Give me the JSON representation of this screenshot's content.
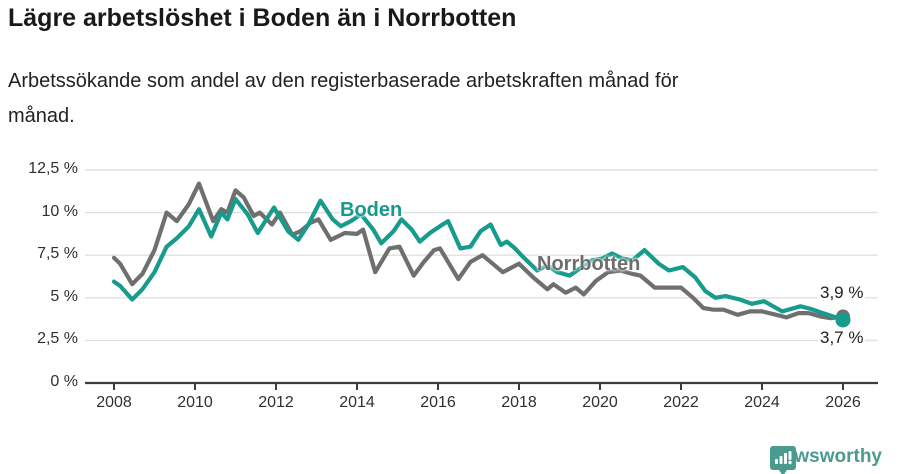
{
  "header": {
    "title": "Lägre arbetslöshet i Boden än i Norrbotten",
    "subtitle_line1": "Arbetssökande som andel av den registerbaserade arbetskraften månad för",
    "subtitle_line2": "månad."
  },
  "footer": {
    "brand": "Newsworthy",
    "brand_color": "#4a9b8e",
    "logo_icon": "speech-bubble-bar-chart-icon"
  },
  "colors": {
    "boden": "#169b8d",
    "norrbotten": "#6f6f6f",
    "gridline": "#e0e0e0",
    "axis": "#3d3d3d",
    "text": "#303030"
  },
  "chart_data": {
    "type": "line",
    "title": "Lägre arbetslöshet i Boden än i Norrbotten",
    "subtitle": "Arbetssökande som andel av den registerbaserade arbetskraften månad för månad.",
    "xlabel": "",
    "ylabel": "",
    "grid": true,
    "legend_position": "inline-labels",
    "x_axis": {
      "tick_years": [
        2008,
        2010,
        2012,
        2014,
        2016,
        2018,
        2020,
        2022,
        2024,
        2026
      ],
      "range": [
        2008,
        2026.8
      ]
    },
    "y_axis": {
      "tick_values": [
        0,
        2.5,
        5,
        7.5,
        10,
        12.5
      ],
      "tick_labels": [
        "0 %",
        "2,5 %",
        "5 %",
        "7,5 %",
        "10 %",
        "12,5 %"
      ],
      "range": [
        0,
        12.5
      ]
    },
    "series": [
      {
        "name": "Boden",
        "color": "#169b8d",
        "end_label": "3,7 %",
        "end_value": 3.7,
        "points": [
          [
            2008.0,
            5.95
          ],
          [
            2008.15,
            5.7
          ],
          [
            2008.45,
            4.9
          ],
          [
            2008.7,
            5.5
          ],
          [
            2009.0,
            6.5
          ],
          [
            2009.3,
            8.0
          ],
          [
            2009.55,
            8.5
          ],
          [
            2009.85,
            9.2
          ],
          [
            2010.1,
            10.2
          ],
          [
            2010.4,
            8.6
          ],
          [
            2010.65,
            10.0
          ],
          [
            2010.8,
            9.6
          ],
          [
            2011.0,
            10.8
          ],
          [
            2011.3,
            9.9
          ],
          [
            2011.55,
            8.8
          ],
          [
            2011.95,
            10.3
          ],
          [
            2012.3,
            8.9
          ],
          [
            2012.55,
            8.4
          ],
          [
            2012.8,
            9.3
          ],
          [
            2013.1,
            10.7
          ],
          [
            2013.4,
            9.6
          ],
          [
            2013.6,
            9.2
          ],
          [
            2013.85,
            9.5
          ],
          [
            2014.1,
            9.9
          ],
          [
            2014.4,
            9.0
          ],
          [
            2014.6,
            8.2
          ],
          [
            2014.9,
            8.9
          ],
          [
            2015.1,
            9.6
          ],
          [
            2015.35,
            9.0
          ],
          [
            2015.55,
            8.3
          ],
          [
            2015.8,
            8.8
          ],
          [
            2016.05,
            9.2
          ],
          [
            2016.25,
            9.5
          ],
          [
            2016.55,
            7.9
          ],
          [
            2016.8,
            8.0
          ],
          [
            2017.05,
            8.9
          ],
          [
            2017.3,
            9.3
          ],
          [
            2017.55,
            8.1
          ],
          [
            2017.7,
            8.3
          ],
          [
            2017.9,
            7.9
          ],
          [
            2018.1,
            7.4
          ],
          [
            2018.45,
            6.6
          ],
          [
            2018.7,
            6.9
          ],
          [
            2018.95,
            6.5
          ],
          [
            2019.25,
            6.3
          ],
          [
            2019.55,
            6.8
          ],
          [
            2019.8,
            7.2
          ],
          [
            2020.05,
            7.3
          ],
          [
            2020.3,
            7.6
          ],
          [
            2020.55,
            7.3
          ],
          [
            2020.8,
            7.2
          ],
          [
            2021.1,
            7.8
          ],
          [
            2021.45,
            7.0
          ],
          [
            2021.7,
            6.6
          ],
          [
            2022.05,
            6.8
          ],
          [
            2022.35,
            6.2
          ],
          [
            2022.6,
            5.4
          ],
          [
            2022.85,
            5.0
          ],
          [
            2023.1,
            5.1
          ],
          [
            2023.45,
            4.9
          ],
          [
            2023.75,
            4.65
          ],
          [
            2024.05,
            4.8
          ],
          [
            2024.5,
            4.2
          ],
          [
            2024.95,
            4.5
          ],
          [
            2025.2,
            4.35
          ],
          [
            2025.5,
            4.1
          ],
          [
            2025.7,
            3.95
          ],
          [
            2026.0,
            3.7
          ]
        ]
      },
      {
        "name": "Norrbotten",
        "color": "#6f6f6f",
        "end_label": "3,9 %",
        "end_value": 3.9,
        "points": [
          [
            2008.0,
            7.35
          ],
          [
            2008.15,
            7.0
          ],
          [
            2008.45,
            5.8
          ],
          [
            2008.7,
            6.4
          ],
          [
            2009.0,
            7.8
          ],
          [
            2009.3,
            10.0
          ],
          [
            2009.55,
            9.5
          ],
          [
            2009.85,
            10.5
          ],
          [
            2010.1,
            11.7
          ],
          [
            2010.45,
            9.5
          ],
          [
            2010.65,
            10.2
          ],
          [
            2010.8,
            10.0
          ],
          [
            2011.0,
            11.3
          ],
          [
            2011.2,
            10.9
          ],
          [
            2011.45,
            9.8
          ],
          [
            2011.6,
            10.0
          ],
          [
            2011.9,
            9.3
          ],
          [
            2012.1,
            10.0
          ],
          [
            2012.4,
            8.7
          ],
          [
            2012.6,
            8.9
          ],
          [
            2012.85,
            9.4
          ],
          [
            2013.05,
            9.6
          ],
          [
            2013.35,
            8.4
          ],
          [
            2013.7,
            8.8
          ],
          [
            2014.0,
            8.75
          ],
          [
            2014.15,
            9.0
          ],
          [
            2014.45,
            6.5
          ],
          [
            2014.8,
            7.9
          ],
          [
            2015.05,
            8.0
          ],
          [
            2015.4,
            6.3
          ],
          [
            2015.65,
            7.1
          ],
          [
            2015.9,
            7.8
          ],
          [
            2016.05,
            7.9
          ],
          [
            2016.5,
            6.1
          ],
          [
            2016.8,
            7.1
          ],
          [
            2017.1,
            7.5
          ],
          [
            2017.6,
            6.5
          ],
          [
            2018.0,
            7.0
          ],
          [
            2018.35,
            6.2
          ],
          [
            2018.7,
            5.5
          ],
          [
            2018.85,
            5.8
          ],
          [
            2019.15,
            5.3
          ],
          [
            2019.4,
            5.6
          ],
          [
            2019.6,
            5.2
          ],
          [
            2019.9,
            6.0
          ],
          [
            2020.2,
            6.5
          ],
          [
            2020.5,
            6.6
          ],
          [
            2020.8,
            6.4
          ],
          [
            2021.0,
            6.3
          ],
          [
            2021.35,
            5.6
          ],
          [
            2021.7,
            5.6
          ],
          [
            2022.0,
            5.6
          ],
          [
            2022.3,
            5.0
          ],
          [
            2022.55,
            4.4
          ],
          [
            2022.8,
            4.3
          ],
          [
            2023.05,
            4.3
          ],
          [
            2023.4,
            4.0
          ],
          [
            2023.7,
            4.2
          ],
          [
            2024.0,
            4.2
          ],
          [
            2024.35,
            4.0
          ],
          [
            2024.6,
            3.85
          ],
          [
            2024.9,
            4.1
          ],
          [
            2025.15,
            4.1
          ],
          [
            2025.45,
            3.9
          ],
          [
            2025.7,
            3.8
          ],
          [
            2026.0,
            3.9
          ]
        ]
      }
    ]
  }
}
